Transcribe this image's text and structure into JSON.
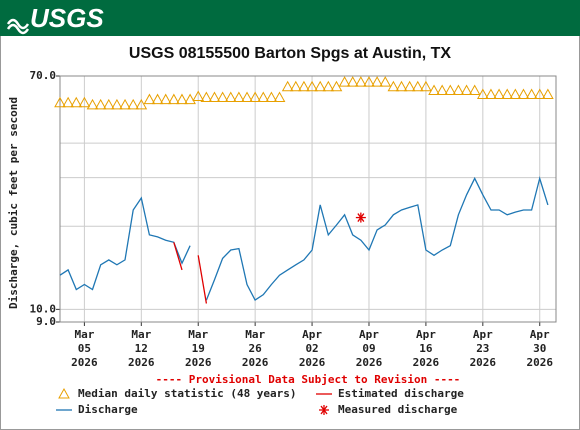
{
  "header": {
    "logo": "USGS"
  },
  "chart_data": {
    "type": "line",
    "title": "USGS 08155500 Barton Spgs at Austin, TX",
    "y_label": "Discharge, cubic feet per second",
    "note": "---- Provisional Data Subject to Revision ----",
    "log_y": true,
    "grid": true,
    "ylim": [
      9,
      70
    ],
    "yticks": [
      {
        "value": 9,
        "label": "9.0"
      },
      {
        "value": 10,
        "label": "10.0"
      },
      {
        "value": 70,
        "label": "70.0"
      }
    ],
    "y_gridlines": [
      20,
      30,
      40
    ],
    "xlim": [
      "2026-03-02",
      "2026-05-02"
    ],
    "xticks": [
      {
        "value": "2026-03-05",
        "label": "Mar\n05\n2026"
      },
      {
        "value": "2026-03-12",
        "label": "Mar\n12\n2026"
      },
      {
        "value": "2026-03-19",
        "label": "Mar\n19\n2026"
      },
      {
        "value": "2026-03-26",
        "label": "Mar\n26\n2026"
      },
      {
        "value": "2026-04-02",
        "label": "Apr\n02\n2026"
      },
      {
        "value": "2026-04-09",
        "label": "Apr\n09\n2026"
      },
      {
        "value": "2026-04-16",
        "label": "Apr\n16\n2026"
      },
      {
        "value": "2026-04-23",
        "label": "Apr\n23\n2026"
      },
      {
        "value": "2026-04-30",
        "label": "Apr\n30\n2026"
      }
    ],
    "x": [
      "2026-03-02",
      "2026-03-03",
      "2026-03-04",
      "2026-03-05",
      "2026-03-06",
      "2026-03-07",
      "2026-03-08",
      "2026-03-09",
      "2026-03-10",
      "2026-03-11",
      "2026-03-12",
      "2026-03-13",
      "2026-03-14",
      "2026-03-15",
      "2026-03-16",
      "2026-03-17",
      "2026-03-18",
      "2026-03-19",
      "2026-03-20",
      "2026-03-21",
      "2026-03-22",
      "2026-03-23",
      "2026-03-24",
      "2026-03-25",
      "2026-03-26",
      "2026-03-27",
      "2026-03-28",
      "2026-03-29",
      "2026-03-30",
      "2026-03-31",
      "2026-04-01",
      "2026-04-02",
      "2026-04-03",
      "2026-04-04",
      "2026-04-05",
      "2026-04-06",
      "2026-04-07",
      "2026-04-08",
      "2026-04-09",
      "2026-04-10",
      "2026-04-11",
      "2026-04-12",
      "2026-04-13",
      "2026-04-14",
      "2026-04-15",
      "2026-04-16",
      "2026-04-17",
      "2026-04-18",
      "2026-04-19",
      "2026-04-20",
      "2026-04-21",
      "2026-04-22",
      "2026-04-23",
      "2026-04-24",
      "2026-04-25",
      "2026-04-26",
      "2026-04-27",
      "2026-04-28",
      "2026-04-29",
      "2026-04-30",
      "2026-05-01"
    ],
    "series": [
      {
        "name": "Median daily statistic (48 years)",
        "style": "triangle",
        "color": "#e8a000",
        "values": [
          56,
          56,
          56,
          56,
          55,
          55,
          55,
          55,
          55,
          55,
          55,
          57.5,
          57.5,
          57.5,
          57.5,
          57.5,
          57.5,
          59,
          58.5,
          58.5,
          58.5,
          58.5,
          58.5,
          58.5,
          58.5,
          58.5,
          58.5,
          58.5,
          64,
          64,
          64,
          64,
          64,
          64,
          64,
          66.5,
          66.5,
          66.5,
          66.5,
          66.5,
          66.5,
          64,
          64,
          64,
          64,
          64,
          62,
          62,
          62,
          62,
          62,
          62,
          60,
          60,
          60,
          60,
          60,
          60,
          60,
          60,
          60
        ]
      },
      {
        "name": "Estimated discharge",
        "style": "line",
        "color": "#e00000",
        "x": [
          "2026-03-16",
          "2026-03-17",
          "2026-03-18",
          "2026-03-19",
          "2026-03-20"
        ],
        "values": [
          17.5,
          13.9,
          null,
          15.7,
          10.5
        ]
      },
      {
        "name": "Discharge",
        "style": "line",
        "color": "#1f77b4",
        "values": [
          13.3,
          13.9,
          11.8,
          12.3,
          11.8,
          14.5,
          15.1,
          14.5,
          15.1,
          22.9,
          25.3,
          18.6,
          18.3,
          17.8,
          17.5,
          14.7,
          17.0,
          null,
          10.8,
          12.8,
          15.3,
          16.4,
          16.6,
          12.3,
          10.8,
          11.3,
          12.3,
          13.3,
          13.9,
          14.5,
          15.1,
          16.4,
          23.9,
          18.6,
          20.2,
          22.0,
          18.6,
          17.8,
          16.4,
          19.4,
          20.2,
          22.0,
          22.9,
          23.4,
          23.9,
          16.4,
          15.7,
          16.4,
          17.0,
          22.0,
          26.0,
          29.8,
          26.0,
          22.9,
          22.9,
          22.0,
          22.5,
          22.9,
          22.9,
          29.8,
          23.9
        ]
      },
      {
        "name": "Measured discharge",
        "style": "star",
        "color": "#e00000",
        "x": [
          "2026-04-08"
        ],
        "values": [
          21.5
        ]
      }
    ]
  }
}
